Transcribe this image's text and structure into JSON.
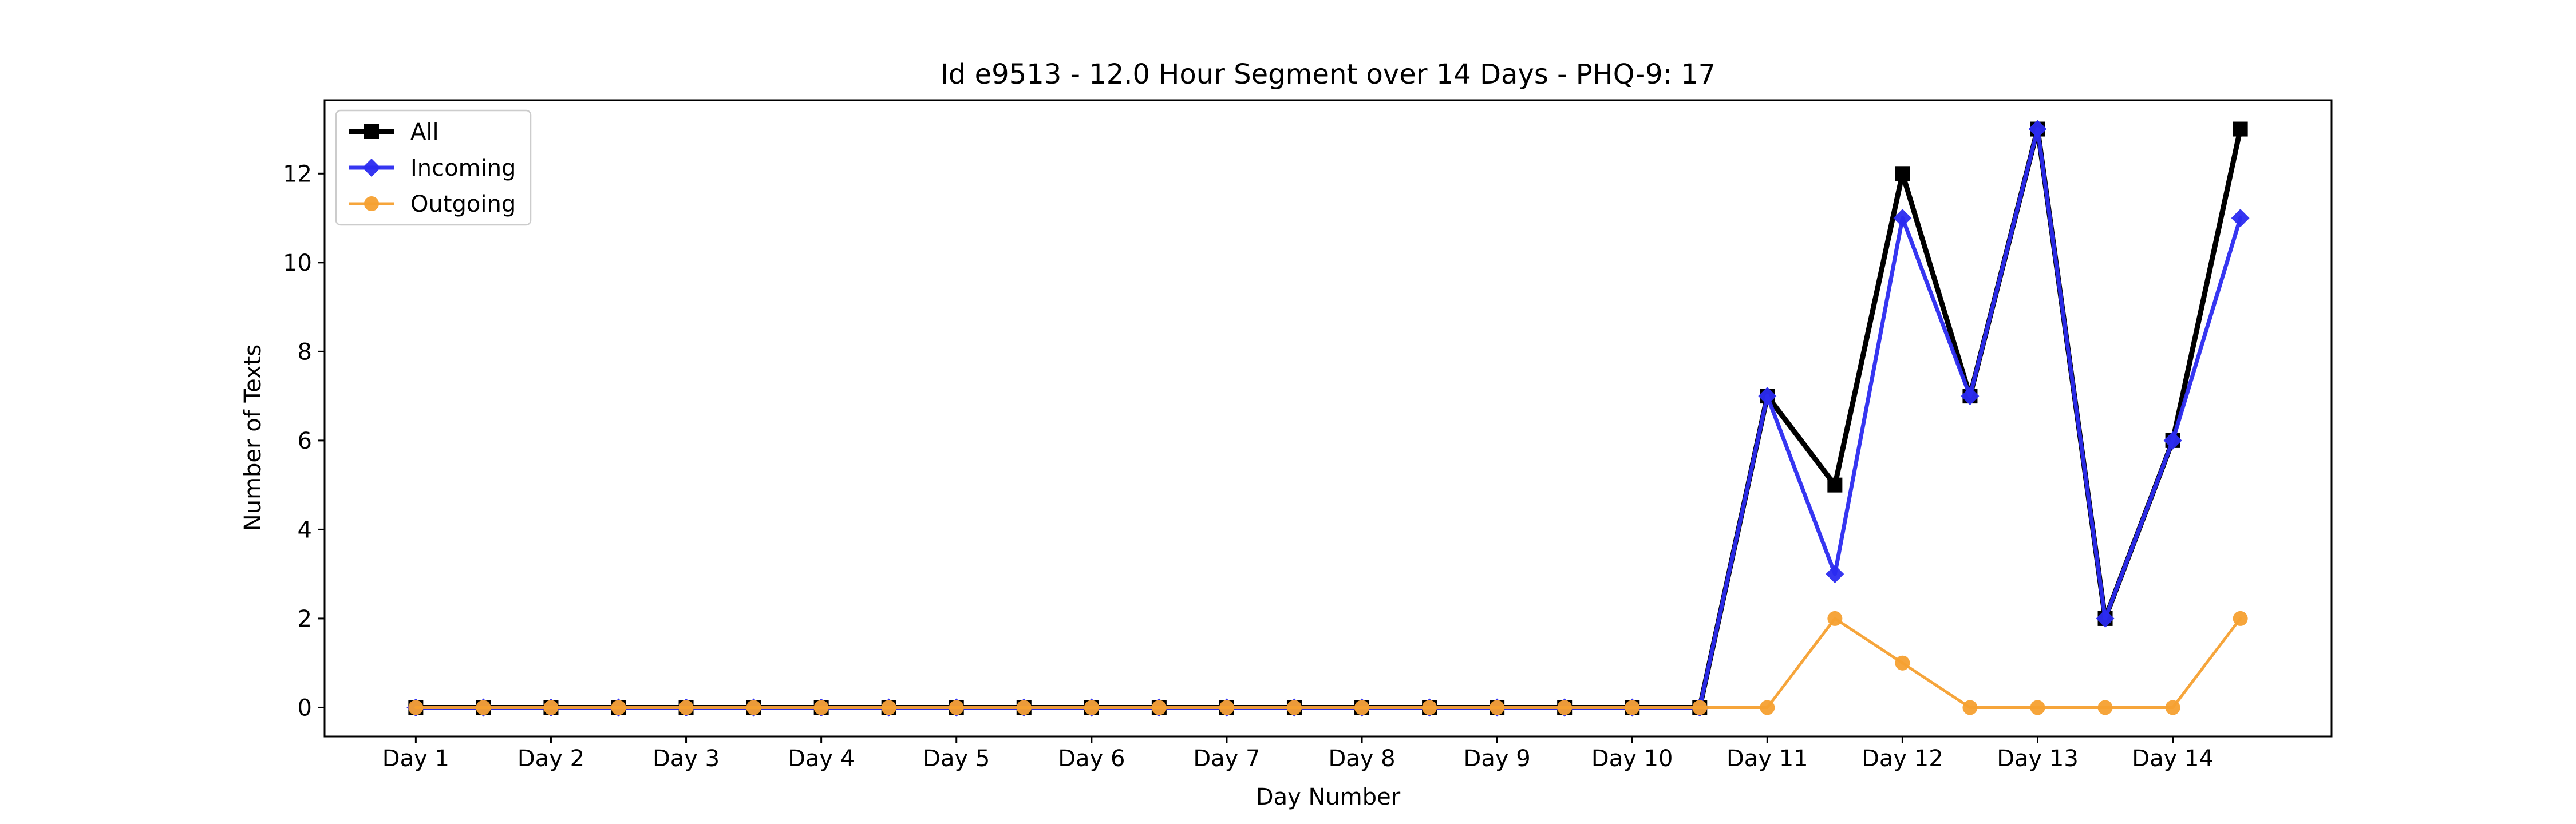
{
  "chart_data": {
    "type": "line",
    "title": "Id e9513 - 12.0 Hour Segment over 14 Days - PHQ-9: 17",
    "xlabel": "Day Number",
    "ylabel": "Number of Texts",
    "x_tick_labels": [
      "Day 1",
      "Day 2",
      "Day 3",
      "Day 4",
      "Day 5",
      "Day 6",
      "Day 7",
      "Day 8",
      "Day 9",
      "Day 10",
      "Day 11",
      "Day 12",
      "Day 13",
      "Day 14"
    ],
    "y_ticks": [
      0,
      2,
      4,
      6,
      8,
      10,
      12
    ],
    "ylim": [
      -0.65,
      13.65
    ],
    "x": [
      1,
      1.5,
      2,
      2.5,
      3,
      3.5,
      4,
      4.5,
      5,
      5.5,
      6,
      6.5,
      7,
      7.5,
      8,
      8.5,
      9,
      9.5,
      10,
      10.5,
      11,
      11.5,
      12,
      12.5,
      13,
      13.5,
      14,
      14.5
    ],
    "xlim": [
      0.325,
      15.175
    ],
    "grid": false,
    "legend_position": "upper-left",
    "series": [
      {
        "name": "All",
        "color": "#000000",
        "marker": "square",
        "values": [
          0,
          0,
          0,
          0,
          0,
          0,
          0,
          0,
          0,
          0,
          0,
          0,
          0,
          0,
          0,
          0,
          0,
          0,
          0,
          0,
          7,
          5,
          12,
          7,
          13,
          2,
          6,
          13
        ]
      },
      {
        "name": "Incoming",
        "color": "#2b2bf0",
        "marker": "diamond",
        "values": [
          0,
          0,
          0,
          0,
          0,
          0,
          0,
          0,
          0,
          0,
          0,
          0,
          0,
          0,
          0,
          0,
          0,
          0,
          0,
          0,
          7,
          3,
          11,
          7,
          13,
          2,
          6,
          11
        ]
      },
      {
        "name": "Outgoing",
        "color": "#f5a030",
        "marker": "circle",
        "values": [
          0,
          0,
          0,
          0,
          0,
          0,
          0,
          0,
          0,
          0,
          0,
          0,
          0,
          0,
          0,
          0,
          0,
          0,
          0,
          0,
          0,
          2,
          1,
          0,
          0,
          0,
          0,
          2
        ]
      }
    ]
  }
}
